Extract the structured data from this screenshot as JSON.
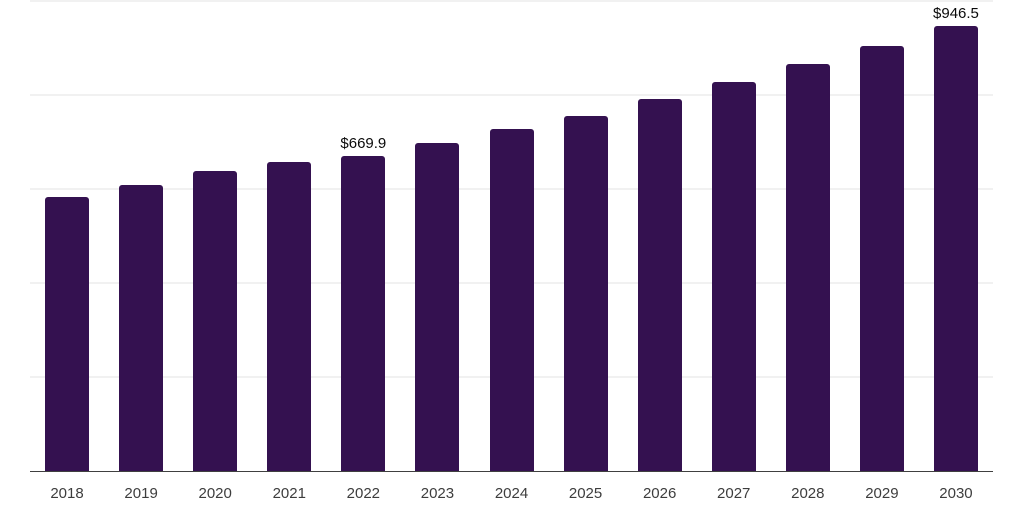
{
  "chart_data": {
    "type": "bar",
    "title": "",
    "xlabel": "",
    "ylabel": "",
    "categories": [
      "2018",
      "2019",
      "2020",
      "2021",
      "2022",
      "2023",
      "2024",
      "2025",
      "2026",
      "2027",
      "2028",
      "2029",
      "2030"
    ],
    "values": [
      583,
      608,
      638,
      658,
      669.9,
      697,
      727,
      756,
      791,
      828,
      866,
      905,
      946.5
    ],
    "data_labels": {
      "2022": "$669.9",
      "2030": "$946.5"
    },
    "ylim": [
      0,
      1000
    ],
    "gridline_step": 200,
    "grid": true,
    "legend_position": "none",
    "bar_color": "#341150",
    "axis_line_color": "#404040",
    "gridline_color": "#f1f1f1",
    "tick_label_color": "#3d3d3d",
    "data_label_color": "#0a0a0a"
  }
}
